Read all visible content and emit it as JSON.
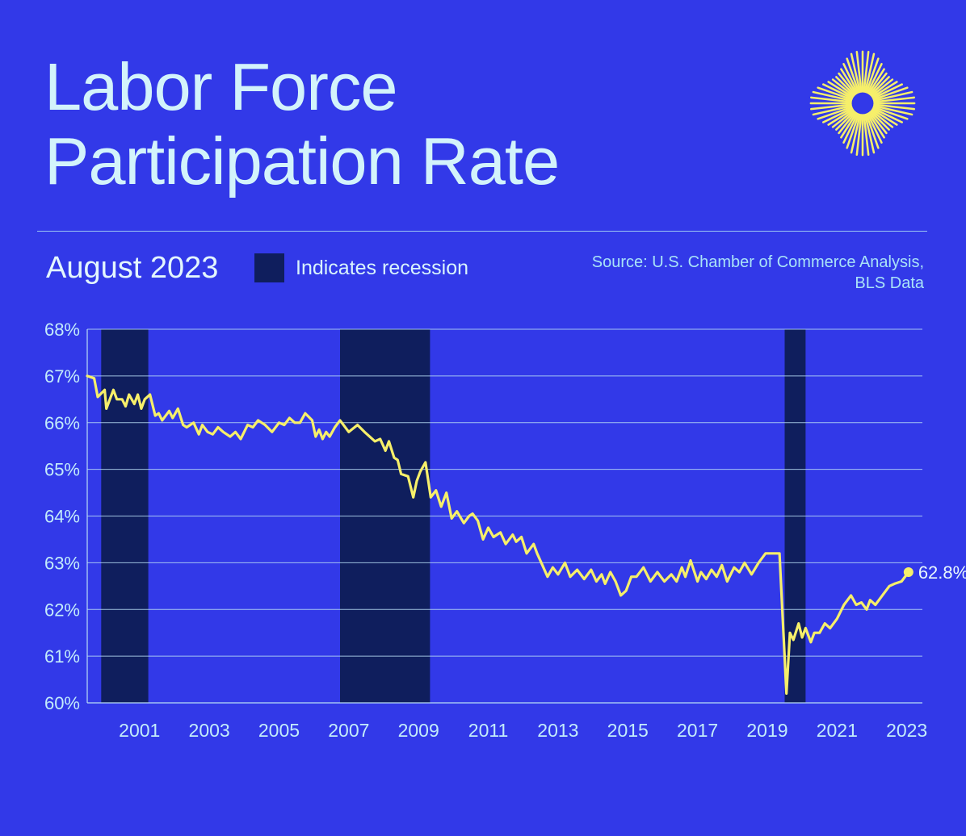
{
  "header": {
    "title_line1": "Labor Force",
    "title_line2": "Participation Rate",
    "subtitle": "August 2023",
    "legend_label": "Indicates recession",
    "source_line1": "Source: U.S. Chamber of Commerce Analysis,",
    "source_line2": "BLS Data"
  },
  "colors": {
    "background": "#3239e8",
    "line": "#f6ef6a",
    "recession": "#0f1e5d",
    "grid": "#b9ddf6",
    "text": "#cfeffb"
  },
  "chart_data": {
    "type": "line",
    "title": "Labor Force Participation Rate",
    "xlabel": "",
    "ylabel": "",
    "xlim": [
      2000.0,
      2023.67
    ],
    "ylim": [
      60,
      68
    ],
    "grid": true,
    "yticks": [
      60,
      61,
      62,
      63,
      64,
      65,
      66,
      67,
      68
    ],
    "ytick_labels": [
      "60%",
      "61%",
      "62%",
      "63%",
      "64%",
      "65%",
      "66%",
      "67%",
      "68%"
    ],
    "xticks": [
      2001,
      2003,
      2005,
      2007,
      2009,
      2011,
      2013,
      2015,
      2017,
      2019,
      2021,
      2023
    ],
    "xtick_labels": [
      "2001",
      "2003",
      "2005",
      "2007",
      "2009",
      "2011",
      "2013",
      "2015",
      "2017",
      "2019",
      "2021",
      "2023"
    ],
    "recessions": [
      [
        2000.4,
        2001.75
      ],
      [
        2007.25,
        2009.83
      ],
      [
        2020.0,
        2020.6
      ]
    ],
    "end_label": "62.8%",
    "series": [
      {
        "name": "Labor force participation rate",
        "x": [
          2000.0,
          2000.2,
          2000.3,
          2000.5,
          2000.55,
          2000.75,
          2000.85,
          2001.0,
          2001.1,
          2001.2,
          2001.35,
          2001.45,
          2001.55,
          2001.65,
          2001.8,
          2001.95,
          2002.05,
          2002.15,
          2002.35,
          2002.45,
          2002.6,
          2002.75,
          2002.85,
          2003.05,
          2003.2,
          2003.3,
          2003.45,
          2003.6,
          2003.75,
          2003.9,
          2004.1,
          2004.25,
          2004.4,
          2004.6,
          2004.75,
          2004.9,
          2005.1,
          2005.3,
          2005.5,
          2005.65,
          2005.8,
          2005.95,
          2006.1,
          2006.25,
          2006.45,
          2006.55,
          2006.65,
          2006.75,
          2006.85,
          2006.95,
          2007.1,
          2007.25,
          2007.5,
          2007.75,
          2007.95,
          2008.1,
          2008.25,
          2008.4,
          2008.55,
          2008.65,
          2008.8,
          2008.9,
          2009.0,
          2009.2,
          2009.35,
          2009.45,
          2009.55,
          2009.7,
          2009.85,
          2010.0,
          2010.15,
          2010.3,
          2010.45,
          2010.6,
          2010.8,
          2010.95,
          2011.05,
          2011.2,
          2011.35,
          2011.5,
          2011.65,
          2011.85,
          2012.0,
          2012.2,
          2012.3,
          2012.45,
          2012.6,
          2012.8,
          2012.9,
          2013.05,
          2013.2,
          2013.35,
          2013.5,
          2013.7,
          2013.85,
          2014.05,
          2014.25,
          2014.45,
          2014.6,
          2014.75,
          2014.85,
          2015.0,
          2015.15,
          2015.3,
          2015.45,
          2015.6,
          2015.75,
          2015.95,
          2016.15,
          2016.35,
          2016.55,
          2016.75,
          2016.9,
          2017.05,
          2017.15,
          2017.3,
          2017.5,
          2017.6,
          2017.75,
          2017.9,
          2018.05,
          2018.2,
          2018.35,
          2018.55,
          2018.7,
          2018.85,
          2019.05,
          2019.25,
          2019.45,
          2019.65,
          2019.85,
          2020.05,
          2020.15,
          2020.25,
          2020.4,
          2020.5,
          2020.6,
          2020.75,
          2020.85,
          2021.0,
          2021.15,
          2021.3,
          2021.5,
          2021.7,
          2021.9,
          2022.05,
          2022.2,
          2022.35,
          2022.45,
          2022.6,
          2022.8,
          2023.0,
          2023.15,
          2023.35,
          2023.55
        ],
        "values": [
          67.0,
          66.95,
          66.55,
          66.7,
          66.3,
          66.7,
          66.5,
          66.5,
          66.35,
          66.6,
          66.4,
          66.6,
          66.3,
          66.5,
          66.6,
          66.15,
          66.2,
          66.05,
          66.25,
          66.1,
          66.3,
          65.95,
          65.9,
          66.0,
          65.75,
          65.95,
          65.8,
          65.75,
          65.9,
          65.8,
          65.7,
          65.8,
          65.65,
          65.95,
          65.9,
          66.05,
          65.95,
          65.8,
          66.0,
          65.95,
          66.1,
          66.0,
          66.0,
          66.2,
          66.05,
          65.7,
          65.85,
          65.65,
          65.8,
          65.7,
          65.9,
          66.05,
          65.8,
          65.95,
          65.8,
          65.7,
          65.6,
          65.65,
          65.4,
          65.6,
          65.25,
          65.2,
          64.9,
          64.85,
          64.4,
          64.75,
          64.95,
          65.15,
          64.4,
          64.55,
          64.2,
          64.5,
          63.95,
          64.1,
          63.85,
          64.0,
          64.05,
          63.9,
          63.5,
          63.75,
          63.55,
          63.65,
          63.4,
          63.6,
          63.45,
          63.55,
          63.2,
          63.4,
          63.2,
          62.95,
          62.7,
          62.9,
          62.75,
          63.0,
          62.7,
          62.85,
          62.65,
          62.85,
          62.6,
          62.75,
          62.55,
          62.8,
          62.6,
          62.3,
          62.4,
          62.7,
          62.7,
          62.9,
          62.6,
          62.8,
          62.6,
          62.75,
          62.6,
          62.9,
          62.7,
          63.05,
          62.6,
          62.8,
          62.65,
          62.85,
          62.7,
          62.95,
          62.6,
          62.9,
          62.8,
          63.0,
          62.75,
          63.0,
          63.2,
          63.2,
          63.2,
          60.2,
          61.5,
          61.35,
          61.7,
          61.4,
          61.6,
          61.3,
          61.5,
          61.5,
          61.7,
          61.6,
          61.8,
          62.1,
          62.3,
          62.1,
          62.15,
          62.0,
          62.2,
          62.1,
          62.3,
          62.5,
          62.55,
          62.6,
          62.8
        ]
      }
    ]
  }
}
